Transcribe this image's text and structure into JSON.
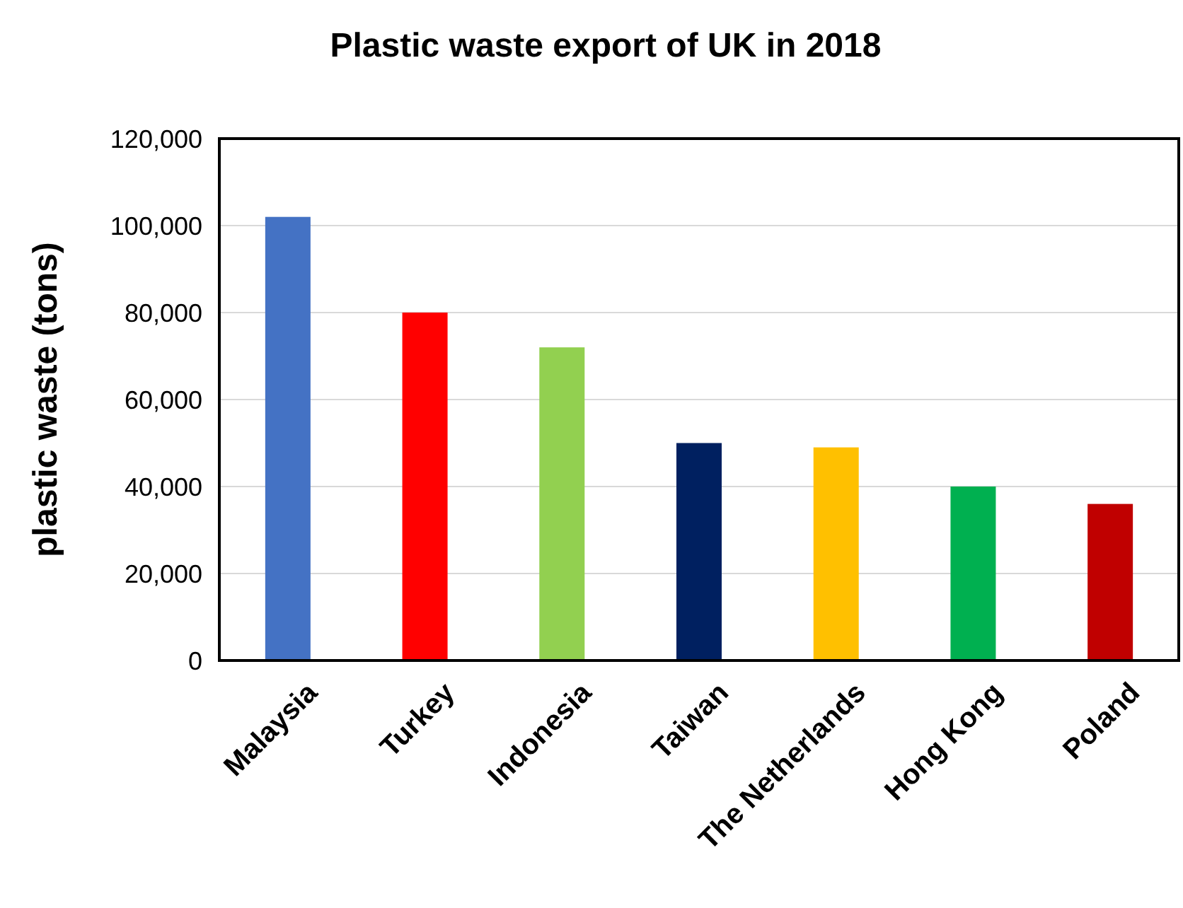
{
  "chart_data": {
    "type": "bar",
    "title": "Plastic waste export of UK in 2018",
    "ylabel": "plastic waste (tons)",
    "categories": [
      "Malaysia",
      "Turkey",
      "Indonesia",
      "Taiwan",
      "The Netherlands",
      "Hong Kong",
      "Poland"
    ],
    "values": [
      102000,
      80000,
      72000,
      50000,
      49000,
      40000,
      36000
    ],
    "colors": [
      "#4472c4",
      "#ff0000",
      "#92d050",
      "#002060",
      "#ffc000",
      "#00b050",
      "#c00000"
    ],
    "ylim": [
      0,
      120000
    ],
    "yticks": [
      {
        "value": 0,
        "label": "0"
      },
      {
        "value": 20000,
        "label": "20,000"
      },
      {
        "value": 40000,
        "label": "40,000"
      },
      {
        "value": 60000,
        "label": "60,000"
      },
      {
        "value": 80000,
        "label": "80,000"
      },
      {
        "value": 100000,
        "label": "100,000"
      },
      {
        "value": 120000,
        "label": "120,000"
      }
    ],
    "grid": "y"
  }
}
